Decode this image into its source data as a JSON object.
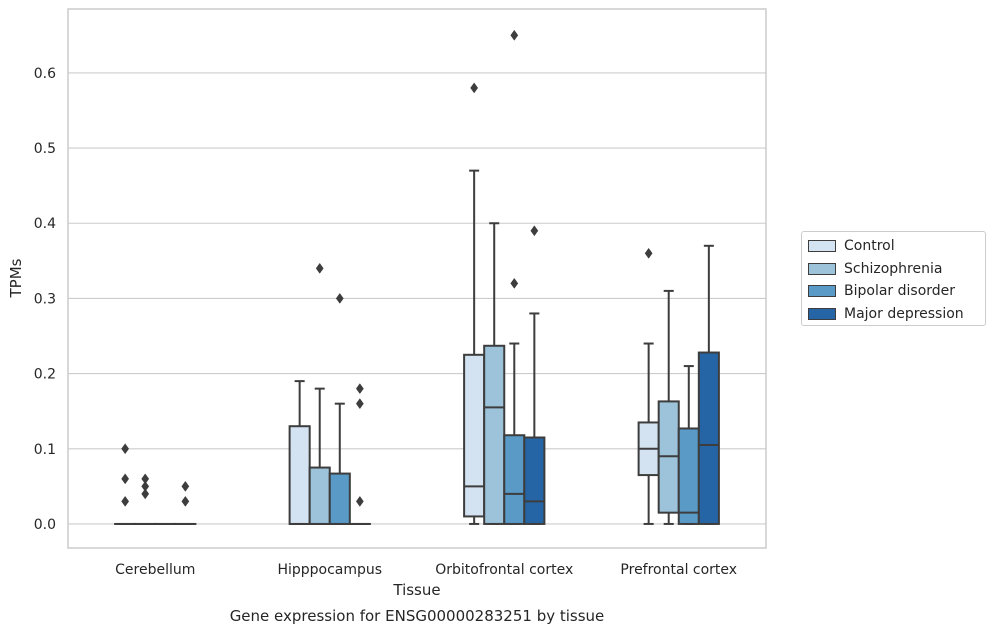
{
  "chart_data": {
    "type": "box",
    "categories": [
      "Cerebellum",
      "Hipppocampus",
      "Orbitofrontal cortex",
      "Prefrontal cortex"
    ],
    "xlabel": "Tissue",
    "ylabel": "TPMs",
    "ylim": [
      -0.032,
      0.685
    ],
    "yticks": [
      0.0,
      0.1,
      0.2,
      0.3,
      0.4,
      0.5,
      0.6
    ],
    "ytick_labels": [
      "0.0",
      "0.1",
      "0.2",
      "0.3",
      "0.4",
      "0.5",
      "0.6"
    ],
    "grid": true,
    "legend_position": "right",
    "series": [
      {
        "name": "Control",
        "color": "#d4e3f2",
        "boxes": [
          {
            "q1": 0.0,
            "median": 0.0,
            "q3": 0.0,
            "whisker_low": 0.0,
            "whisker_high": 0.0,
            "outliers": [
              0.03,
              0.06,
              0.1
            ]
          },
          {
            "q1": 0.0,
            "median": 0.0,
            "q3": 0.13,
            "whisker_low": 0.0,
            "whisker_high": 0.19,
            "outliers": []
          },
          {
            "q1": 0.01,
            "median": 0.05,
            "q3": 0.225,
            "whisker_low": 0.0,
            "whisker_high": 0.47,
            "outliers": [
              0.58
            ]
          },
          {
            "q1": 0.065,
            "median": 0.1,
            "q3": 0.135,
            "whisker_low": 0.0,
            "whisker_high": 0.24,
            "outliers": [
              0.36
            ]
          }
        ]
      },
      {
        "name": "Schizophrenia",
        "color": "#9cc3da",
        "boxes": [
          {
            "q1": 0.0,
            "median": 0.0,
            "q3": 0.0,
            "whisker_low": 0.0,
            "whisker_high": 0.0,
            "outliers": [
              0.04,
              0.05,
              0.06
            ]
          },
          {
            "q1": 0.0,
            "median": 0.0,
            "q3": 0.075,
            "whisker_low": 0.0,
            "whisker_high": 0.18,
            "outliers": [
              0.34
            ]
          },
          {
            "q1": 0.0,
            "median": 0.155,
            "q3": 0.237,
            "whisker_low": 0.0,
            "whisker_high": 0.4,
            "outliers": []
          },
          {
            "q1": 0.015,
            "median": 0.09,
            "q3": 0.163,
            "whisker_low": 0.0,
            "whisker_high": 0.31,
            "outliers": []
          }
        ]
      },
      {
        "name": "Bipolar disorder",
        "color": "#5a9ac7",
        "boxes": [
          {
            "q1": 0.0,
            "median": 0.0,
            "q3": 0.0,
            "whisker_low": 0.0,
            "whisker_high": 0.0,
            "outliers": []
          },
          {
            "q1": 0.0,
            "median": 0.0,
            "q3": 0.067,
            "whisker_low": 0.0,
            "whisker_high": 0.16,
            "outliers": [
              0.3
            ]
          },
          {
            "q1": 0.0,
            "median": 0.04,
            "q3": 0.118,
            "whisker_low": 0.0,
            "whisker_high": 0.24,
            "outliers": [
              0.32,
              0.65
            ]
          },
          {
            "q1": 0.0,
            "median": 0.015,
            "q3": 0.127,
            "whisker_low": 0.0,
            "whisker_high": 0.21,
            "outliers": []
          }
        ]
      },
      {
        "name": "Major depression",
        "color": "#2565a6",
        "boxes": [
          {
            "q1": 0.0,
            "median": 0.0,
            "q3": 0.0,
            "whisker_low": 0.0,
            "whisker_high": 0.0,
            "outliers": [
              0.03,
              0.05
            ]
          },
          {
            "q1": 0.0,
            "median": 0.0,
            "q3": 0.0,
            "whisker_low": 0.0,
            "whisker_high": 0.0,
            "outliers": [
              0.03,
              0.16,
              0.18
            ]
          },
          {
            "q1": 0.0,
            "median": 0.03,
            "q3": 0.115,
            "whisker_low": 0.0,
            "whisker_high": 0.28,
            "outliers": [
              0.39
            ]
          },
          {
            "q1": 0.0,
            "median": 0.105,
            "q3": 0.228,
            "whisker_low": 0.0,
            "whisker_high": 0.37,
            "outliers": []
          }
        ]
      }
    ]
  },
  "caption": "Gene expression for ENSG00000283251 by tissue",
  "colors": {
    "grid": "#cccccc",
    "frame": "#cccccc",
    "box_edge": "#3d3d3d"
  }
}
